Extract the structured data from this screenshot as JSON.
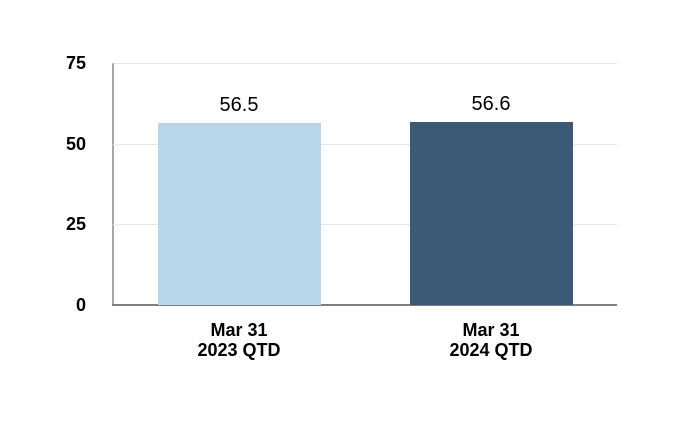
{
  "chart_data": {
    "type": "bar",
    "title": "",
    "xlabel": "",
    "ylabel": "",
    "categories": [
      "Mar 31 2023 QTD",
      "Mar 31 2024 QTD"
    ],
    "category_lines": [
      [
        "Mar 31",
        "2023 QTD"
      ],
      [
        "Mar 31",
        "2024 QTD"
      ]
    ],
    "values": [
      56.5,
      56.6
    ],
    "data_labels": [
      "56.5",
      "56.6"
    ],
    "bar_colors": [
      "#B9D5E9",
      "#3C5A75"
    ],
    "yticks": [
      0,
      25,
      50,
      75
    ],
    "ylim": [
      0,
      75
    ],
    "grid": true,
    "legend_position": "none"
  },
  "colors": {
    "background": "#FFFFFF",
    "bar_2023_qtd": "#B9D5E9",
    "bar_2024_qtd": "#3C5A75",
    "gridline": "#E7E7E7",
    "y_axis_line": "#A6A6A6",
    "x_baseline": "#7F7F7F",
    "text": "#000000"
  }
}
